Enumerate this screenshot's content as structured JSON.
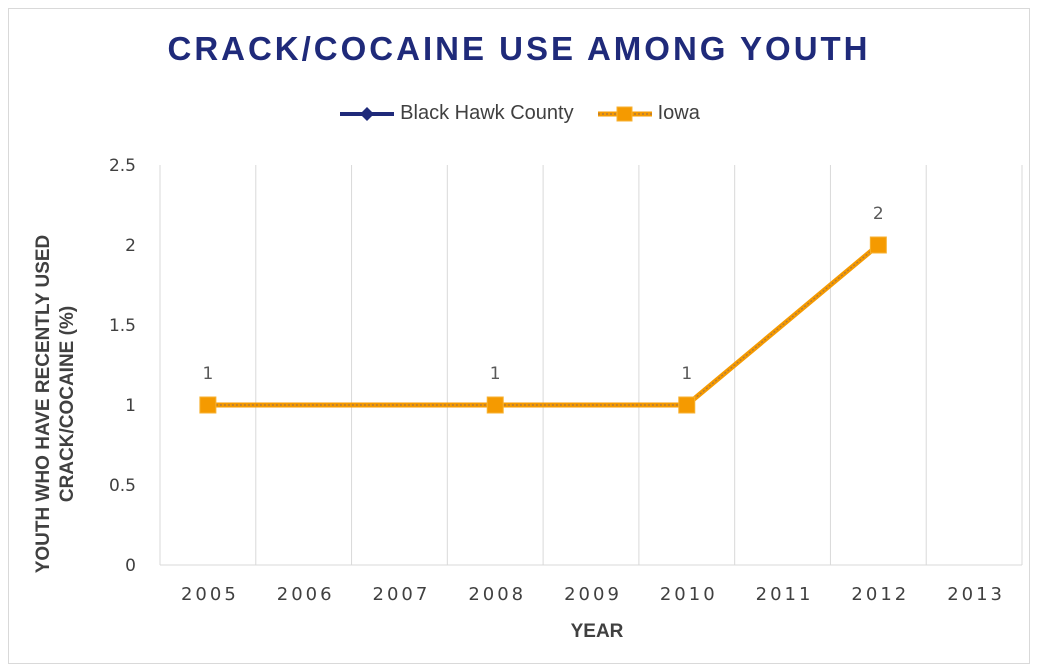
{
  "chart_data": {
    "type": "line",
    "title": "CRACK/COCAINE USE AMONG YOUTH",
    "xlabel": "YEAR",
    "ylabel_lines": [
      "YOUTH WHO HAVE RECENTLY USED",
      "CRACK/COCAINE (%)"
    ],
    "categories": [
      "2005",
      "2006",
      "2007",
      "2008",
      "2009",
      "2010",
      "2011",
      "2012",
      "2013"
    ],
    "ylim": [
      0,
      2.5
    ],
    "yticks": [
      0,
      0.5,
      1,
      1.5,
      2,
      2.5
    ],
    "ytick_labels": [
      "0",
      "0.5",
      "1",
      "1.5",
      "2",
      "2.5"
    ],
    "grid": "vertical",
    "legend_position": "top",
    "series": [
      {
        "name": "Black Hawk County",
        "color": "#1f2a7a",
        "marker": "diamond",
        "points": []
      },
      {
        "name": "Iowa",
        "color": "#f59a00",
        "line_color": "#b07a3c",
        "marker": "square",
        "points": [
          {
            "x": "2005",
            "y": 1,
            "label": "1"
          },
          {
            "x": "2008",
            "y": 1,
            "label": "1"
          },
          {
            "x": "2010",
            "y": 1,
            "label": "1"
          },
          {
            "x": "2012",
            "y": 2,
            "label": "2"
          }
        ]
      }
    ]
  }
}
